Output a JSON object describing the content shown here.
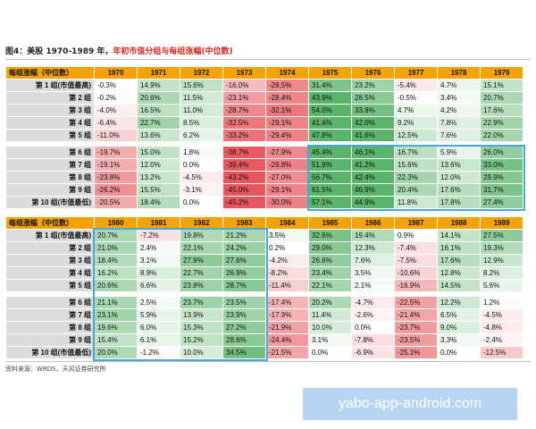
{
  "figure_title": {
    "prefix": "图4：美股 1970-1989 年，",
    "highlight": "年初市值分组与每组涨幅(中位数)"
  },
  "source_note": "资料来源：WRDS，天风证券研究所",
  "watermark": "yabo-app-android.com",
  "color_scale": {
    "neg_strong": "#e8565c",
    "pos_strong": "#5ab46a",
    "header": "#f5a300",
    "box": "#49a8d8"
  },
  "tables": [
    {
      "corner": "每组涨幅（中位数）",
      "years": [
        "1970",
        "1971",
        "1972",
        "1973",
        "1974",
        "1975",
        "1976",
        "1977",
        "1978",
        "1979"
      ],
      "rows": [
        {
          "label": "第 1 组(市值最高)",
          "values": [
            "-0.3%",
            "14.9%",
            "15.6%",
            "-16.0%",
            "-28.5%",
            "31.4%",
            "23.2%",
            "-5.4%",
            "4.7%",
            "15.1%"
          ]
        },
        {
          "label": "第 2 组",
          "values": [
            "-0.2%",
            "20.6%",
            "11.5%",
            "-23.1%",
            "-28.4%",
            "43.9%",
            "28.5%",
            "-0.5%",
            "3.4%",
            "20.7%"
          ]
        },
        {
          "label": "第 3 组",
          "values": [
            "-4.0%",
            "16.5%",
            "11.0%",
            "-28.7%",
            "-32.1%",
            "54.0%",
            "33.8%",
            "4.7%",
            "4.2%",
            "17.6%"
          ]
        },
        {
          "label": "第 4 组",
          "values": [
            "-6.4%",
            "22.7%",
            "8.5%",
            "-32.5%",
            "-29.1%",
            "41.4%",
            "42.0%",
            "9.2%",
            "7.8%",
            "22.9%"
          ]
        },
        {
          "label": "第 5 组",
          "values": [
            "-11.0%",
            "13.6%",
            "6.2%",
            "-33.2%",
            "-29.4%",
            "47.8%",
            "41.6%",
            "12.5%",
            "7.6%",
            "22.0%"
          ]
        },
        {
          "label": "第 6 组",
          "values": [
            "-19.7%",
            "15.0%",
            "1.8%",
            "-38.7%",
            "-27.9%",
            "45.4%",
            "46.1%",
            "16.7%",
            "5.9%",
            "26.0%"
          ]
        },
        {
          "label": "第 7 组",
          "values": [
            "-19.1%",
            "12.0%",
            "0.0%",
            "-39.4%",
            "-29.8%",
            "51.9%",
            "41.2%",
            "15.6%",
            "13.6%",
            "33.0%"
          ]
        },
        {
          "label": "第 8 组",
          "values": [
            "-23.8%",
            "13.2%",
            "-4.5%",
            "-43.2%",
            "-27.0%",
            "56.7%",
            "42.4%",
            "22.3%",
            "12.0%",
            "29.9%"
          ]
        },
        {
          "label": "第 9 组",
          "values": [
            "-26.2%",
            "15.5%",
            "-3.1%",
            "-45.0%",
            "-29.1%",
            "61.5%",
            "46.9%",
            "20.4%",
            "17.6%",
            "31.7%"
          ]
        },
        {
          "label": "第 10 组(市值最低)",
          "values": [
            "-20.5%",
            "18.4%",
            "0.0%",
            "-45.2%",
            "-30.0%",
            "57.1%",
            "44.9%",
            "11.8%",
            "17.8%",
            "27.4%"
          ]
        }
      ]
    },
    {
      "corner": "每组涨幅（中位数）",
      "years": [
        "1980",
        "1981",
        "1982",
        "1983",
        "1984",
        "1985",
        "1986",
        "1987",
        "1988",
        "1989"
      ],
      "rows": [
        {
          "label": "第 1 组(市值最高)",
          "values": [
            "20.7%",
            "-7.2%",
            "19.8%",
            "21.2%",
            "3.5%",
            "32.6%",
            "19.4%",
            "0.9%",
            "14.1%",
            "27.5%"
          ]
        },
        {
          "label": "第 2 组",
          "values": [
            "21.0%",
            "2.4%",
            "22.1%",
            "24.2%",
            "0.2%",
            "29.0%",
            "12.3%",
            "-7.4%",
            "16.1%",
            "19.3%"
          ]
        },
        {
          "label": "第 3 组",
          "values": [
            "18.4%",
            "3.1%",
            "27.9%",
            "27.6%",
            "-4.2%",
            "26.6%",
            "7.6%",
            "-7.5%",
            "17.6%",
            "12.9%"
          ]
        },
        {
          "label": "第 4 组",
          "values": [
            "16.2%",
            "8.9%",
            "22.7%",
            "26.9%",
            "-8.2%",
            "23.4%",
            "3.5%",
            "-10.6%",
            "12.8%",
            "8.2%"
          ]
        },
        {
          "label": "第 5 组",
          "values": [
            "20.6%",
            "6.6%",
            "23.8%",
            "28.7%",
            "-11.4%",
            "22.1%",
            "2.1%",
            "-16.9%",
            "14.5%",
            "5.6%"
          ]
        },
        {
          "label": "第 6 组",
          "values": [
            "21.1%",
            "2.5%",
            "23.7%",
            "23.5%",
            "-17.4%",
            "20.2%",
            "-4.7%",
            "-22.5%",
            "12.2%",
            "1.2%"
          ]
        },
        {
          "label": "第 7 组",
          "values": [
            "23.1%",
            "5.9%",
            "13.9%",
            "23.9%",
            "-17.9%",
            "11.4%",
            "-2.6%",
            "-21.4%",
            "6.5%",
            "-4.5%"
          ]
        },
        {
          "label": "第 8 组",
          "values": [
            "19.6%",
            "6.0%",
            "15.3%",
            "27.2%",
            "-21.9%",
            "10.0%",
            "0.0%",
            "-23.7%",
            "9.0%",
            "-4.8%"
          ]
        },
        {
          "label": "第 9 组",
          "values": [
            "15.4%",
            "6.1%",
            "15.2%",
            "28.6%",
            "-24.4%",
            "3.1%",
            "-7.8%",
            "-23.5%",
            "3.3%",
            "-2.4%"
          ]
        },
        {
          "label": "第 10 组(市值最低)",
          "values": [
            "20.0%",
            "-1.2%",
            "10.0%",
            "34.5%",
            "-21.5%",
            "0.0%",
            "-6.9%",
            "-25.1%",
            "0.0%",
            "-12.5%"
          ]
        }
      ]
    }
  ]
}
